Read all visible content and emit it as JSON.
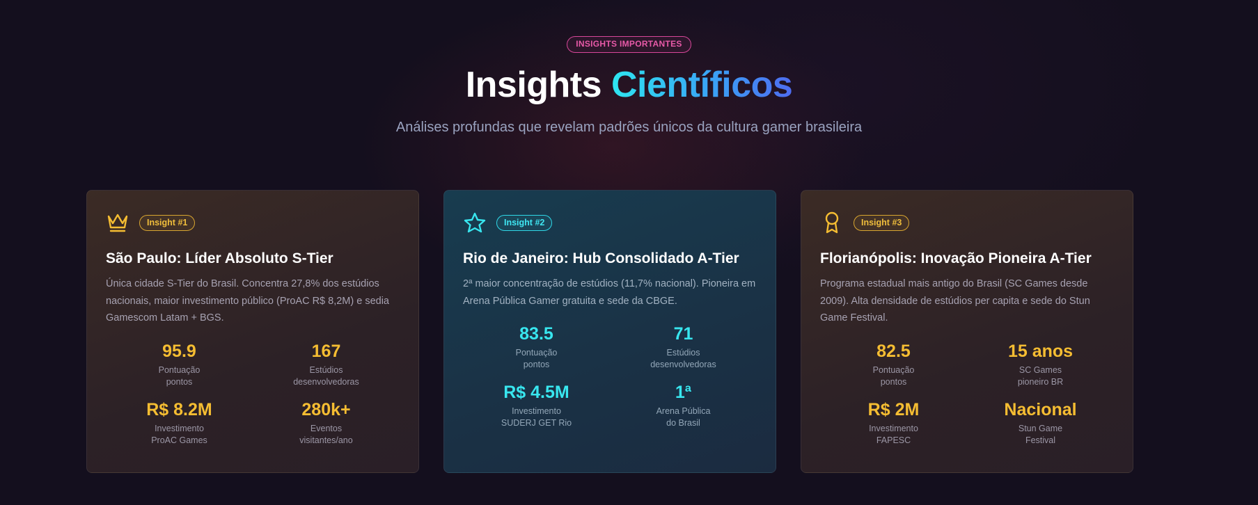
{
  "header": {
    "badge": "INSIGHTS IMPORTANTES",
    "title_plain": "Insights",
    "title_accent": "Científicos",
    "subtitle": "Análises profundas que revelam padrões únicos da cultura gamer brasileira"
  },
  "colors": {
    "gold_accent": "#f5bd32",
    "cyan_accent": "#38e6ef",
    "badge_pink": "#e85aa8"
  },
  "cards": [
    {
      "icon": "crown-icon",
      "tag": "Insight #1",
      "title": "São Paulo: Líder Absoluto S-Tier",
      "description": "Única cidade S-Tier do Brasil. Concentra 27,8% dos estúdios nacionais, maior investimento público (ProAC R$ 8,2M) e sedia Gamescom Latam + BGS.",
      "stats": [
        {
          "value": "95.9",
          "label_line1": "Pontuação",
          "label_line2": "pontos"
        },
        {
          "value": "167",
          "label_line1": "Estúdios",
          "label_line2": "desenvolvedoras"
        },
        {
          "value": "R$ 8.2M",
          "label_line1": "Investimento",
          "label_line2": "ProAC Games"
        },
        {
          "value": "280k+",
          "label_line1": "Eventos",
          "label_line2": "visitantes/ano"
        }
      ]
    },
    {
      "icon": "star-icon",
      "tag": "Insight #2",
      "title": "Rio de Janeiro: Hub Consolidado A-Tier",
      "description": "2ª maior concentração de estúdios (11,7% nacional). Pioneira em Arena Pública Gamer gratuita e sede da CBGE.",
      "stats": [
        {
          "value": "83.5",
          "label_line1": "Pontuação",
          "label_line2": "pontos"
        },
        {
          "value": "71",
          "label_line1": "Estúdios",
          "label_line2": "desenvolvedoras"
        },
        {
          "value": "R$ 4.5M",
          "label_line1": "Investimento",
          "label_line2": "SUDERJ GET Rio"
        },
        {
          "value": "1ª",
          "label_line1": "Arena Pública",
          "label_line2": "do Brasil"
        }
      ]
    },
    {
      "icon": "award-ribbon-icon",
      "tag": "Insight #3",
      "title": "Florianópolis: Inovação Pioneira A-Tier",
      "description": "Programa estadual mais antigo do Brasil (SC Games desde 2009). Alta densidade de estúdios per capita e sede do Stun Game Festival.",
      "stats": [
        {
          "value": "82.5",
          "label_line1": "Pontuação",
          "label_line2": "pontos"
        },
        {
          "value": "15 anos",
          "label_line1": "SC Games",
          "label_line2": "pioneiro BR"
        },
        {
          "value": "R$ 2M",
          "label_line1": "Investimento",
          "label_line2": "FAPESC"
        },
        {
          "value": "Nacional",
          "label_line1": "Stun Game",
          "label_line2": "Festival"
        }
      ]
    }
  ]
}
